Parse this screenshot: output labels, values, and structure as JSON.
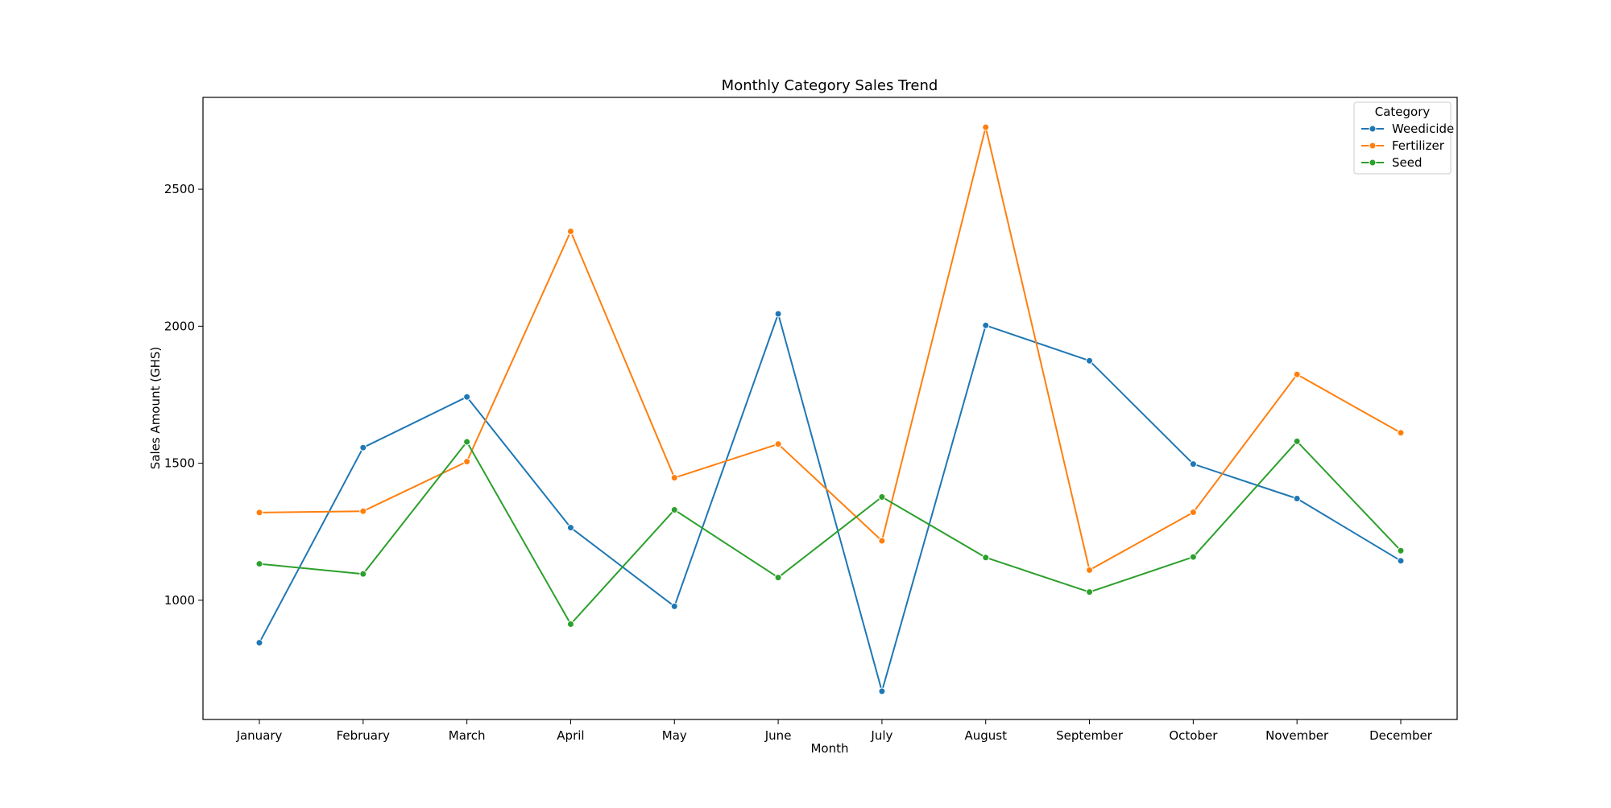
{
  "chart_data": {
    "type": "line",
    "title": "Monthly Category Sales Trend",
    "xlabel": "Month",
    "ylabel": "Sales Amount (GHS)",
    "categories": [
      "January",
      "February",
      "March",
      "April",
      "May",
      "June",
      "July",
      "August",
      "September",
      "October",
      "November",
      "December"
    ],
    "series": [
      {
        "name": "Weedicide",
        "color": "#1f77b4",
        "values": [
          845,
          1557,
          1742,
          1265,
          978,
          2045,
          668,
          2003,
          1874,
          1497,
          1371,
          1144
        ]
      },
      {
        "name": "Fertilizer",
        "color": "#ff7f0e",
        "values": [
          1320,
          1325,
          1506,
          2346,
          1447,
          1570,
          1217,
          2726,
          1110,
          1321,
          1824,
          1611
        ]
      },
      {
        "name": "Seed",
        "color": "#2ca02c",
        "values": [
          1133,
          1096,
          1578,
          913,
          1330,
          1083,
          1377,
          1156,
          1030,
          1158,
          1580,
          1181
        ]
      }
    ],
    "ylim": [
      565,
      2835
    ],
    "yticks": [
      1000,
      1500,
      2000,
      2500
    ],
    "grid": false,
    "legend": {
      "title": "Category",
      "placement": "top-right"
    }
  }
}
